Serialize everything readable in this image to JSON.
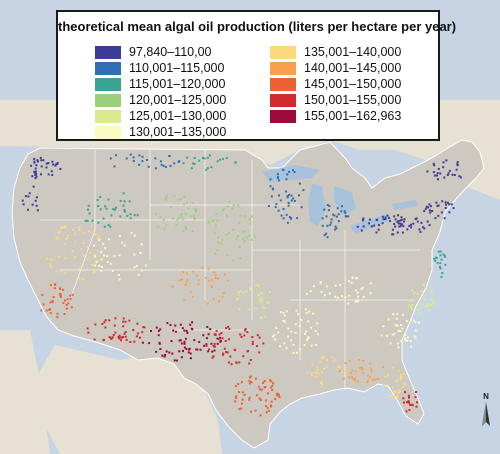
{
  "legend": {
    "title": "theoretical mean algal oil production (liters per hectare per year)",
    "items": [
      {
        "label": "97,840–110,00",
        "color": "#3d3c98"
      },
      {
        "label": "110,001–115,000",
        "color": "#2f6fb5"
      },
      {
        "label": "115,001–120,000",
        "color": "#3aa392"
      },
      {
        "label": "120,001–125,000",
        "color": "#9bd07c"
      },
      {
        "label": "125,001–130,000",
        "color": "#dcea8e"
      },
      {
        "label": "130,001–135,000",
        "color": "#fafbc0"
      },
      {
        "label": "135,001–140,000",
        "color": "#fdd97e"
      },
      {
        "label": "140,001–145,000",
        "color": "#f8a04e"
      },
      {
        "label": "145,001–150,000",
        "color": "#ec6232"
      },
      {
        "label": "150,001–155,000",
        "color": "#d12a2f"
      },
      {
        "label": "155,001–162,963",
        "color": "#9b0a3a"
      }
    ]
  },
  "north_label": "N",
  "colors": {
    "water": "#c6d4e4",
    "land_other": "#e7e1d3",
    "land_us": "#cdc8c0",
    "great_lakes": "#a9c2dc",
    "border": "#ffffff"
  }
}
